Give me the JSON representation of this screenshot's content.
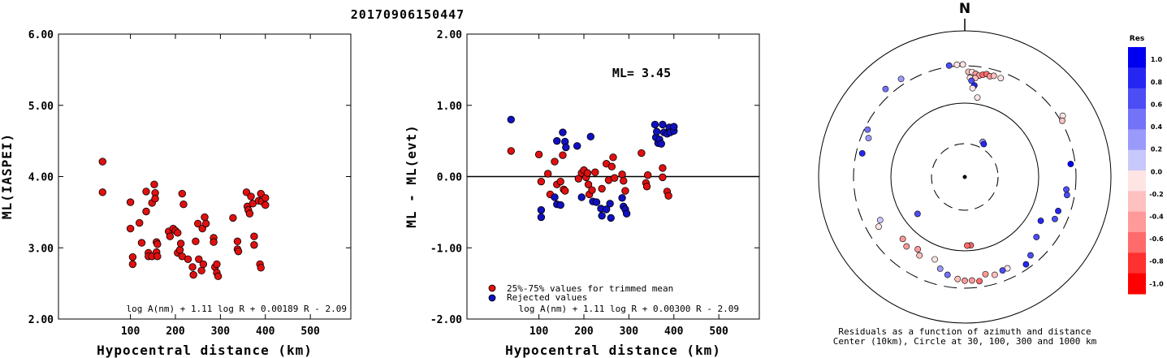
{
  "figure_title": "20170906150447",
  "chart_data": [
    {
      "type": "scatter",
      "title": "",
      "xlabel": "Hypocentral distance (km)",
      "ylabel": "ML(IASPEI)",
      "xlim": [
        -60,
        590
      ],
      "ylim": [
        2.0,
        6.0
      ],
      "xticks": [
        "100",
        "200",
        "300",
        "400",
        "500"
      ],
      "yticks": [
        "2.00",
        "3.00",
        "4.00",
        "5.00",
        "6.00"
      ],
      "formula": "log A(nm) + 1.11 log R + 0.00189 R - 2.09",
      "series": [
        {
          "color": "#e01010",
          "points": [
            [
              38,
              4.21
            ],
            [
              38,
              3.78
            ],
            [
              100,
              3.64
            ],
            [
              100,
              3.27
            ],
            [
              105,
              2.87
            ],
            [
              105,
              2.77
            ],
            [
              120,
              3.35
            ],
            [
              125,
              3.07
            ],
            [
              135,
              3.79
            ],
            [
              135,
              3.51
            ],
            [
              140,
              2.93
            ],
            [
              140,
              2.88
            ],
            [
              148,
              3.63
            ],
            [
              148,
              2.88
            ],
            [
              153,
              3.89
            ],
            [
              155,
              3.77
            ],
            [
              155,
              3.69
            ],
            [
              158,
              3.08
            ],
            [
              158,
              2.94
            ],
            [
              160,
              3.05
            ],
            [
              160,
              2.88
            ],
            [
              185,
              3.23
            ],
            [
              188,
              3.16
            ],
            [
              195,
              3.27
            ],
            [
              200,
              3.24
            ],
            [
              205,
              3.21
            ],
            [
              205,
              2.93
            ],
            [
              210,
              2.97
            ],
            [
              212,
              3.06
            ],
            [
              215,
              3.76
            ],
            [
              215,
              2.88
            ],
            [
              218,
              3.61
            ],
            [
              228,
              2.84
            ],
            [
              238,
              2.73
            ],
            [
              240,
              2.62
            ],
            [
              245,
              3.09
            ],
            [
              250,
              3.34
            ],
            [
              252,
              2.84
            ],
            [
              258,
              2.68
            ],
            [
              260,
              3.27
            ],
            [
              262,
              2.77
            ],
            [
              265,
              3.43
            ],
            [
              268,
              3.34
            ],
            [
              285,
              3.14
            ],
            [
              285,
              3.08
            ],
            [
              288,
              2.73
            ],
            [
              292,
              2.77
            ],
            [
              292,
              2.65
            ],
            [
              295,
              2.6
            ],
            [
              328,
              3.42
            ],
            [
              338,
              3.09
            ],
            [
              338,
              2.98
            ],
            [
              340,
              2.95
            ],
            [
              358,
              3.78
            ],
            [
              360,
              3.58
            ],
            [
              362,
              3.53
            ],
            [
              365,
              3.48
            ],
            [
              368,
              3.72
            ],
            [
              372,
              3.62
            ],
            [
              375,
              3.16
            ],
            [
              375,
              3.04
            ],
            [
              385,
              3.66
            ],
            [
              388,
              2.77
            ],
            [
              390,
              2.72
            ],
            [
              390,
              3.76
            ],
            [
              392,
              3.65
            ],
            [
              400,
              3.7
            ],
            [
              400,
              3.6
            ]
          ]
        }
      ]
    },
    {
      "type": "scatter",
      "title": "",
      "xlabel": "Hypocentral distance (km)",
      "ylabel": "ML - ML(evt)",
      "xlim": [
        -60,
        590
      ],
      "ylim": [
        -2.0,
        2.0
      ],
      "xticks": [
        "100",
        "200",
        "300",
        "400",
        "500"
      ],
      "yticks": [
        "-2.00",
        "-1.00",
        "0.00",
        "1.00",
        "2.00"
      ],
      "formula": "log A(nm) + 1.11 log R + 0.00300 R - 2.09",
      "ml_label": "ML= 3.45",
      "legend": [
        {
          "label": "25%-75% values for trimmed mean",
          "color": "#e01010"
        },
        {
          "label": "Rejected values",
          "color": "#1010c0"
        }
      ],
      "series": [
        {
          "name": "25%-75% values for trimmed mean",
          "color": "#e01010",
          "points": [
            [
              38,
              0.36
            ],
            [
              100,
              0.31
            ],
            [
              105,
              -0.07
            ],
            [
              120,
              0.04
            ],
            [
              125,
              -0.25
            ],
            [
              135,
              0.21
            ],
            [
              140,
              -0.11
            ],
            [
              148,
              -0.07
            ],
            [
              153,
              0.3
            ],
            [
              155,
              -0.18
            ],
            [
              158,
              -0.2
            ],
            [
              188,
              -0.03
            ],
            [
              195,
              0.05
            ],
            [
              200,
              0.09
            ],
            [
              205,
              -0.01
            ],
            [
              208,
              0.05
            ],
            [
              210,
              -0.11
            ],
            [
              212,
              -0.25
            ],
            [
              218,
              -0.19
            ],
            [
              225,
              0.06
            ],
            [
              240,
              -0.17
            ],
            [
              250,
              0.18
            ],
            [
              255,
              -0.05
            ],
            [
              262,
              0.14
            ],
            [
              265,
              0.27
            ],
            [
              268,
              -0.02
            ],
            [
              285,
              0.03
            ],
            [
              288,
              -0.06
            ],
            [
              292,
              -0.2
            ],
            [
              328,
              0.33
            ],
            [
              338,
              -0.09
            ],
            [
              340,
              -0.14
            ],
            [
              342,
              0.02
            ],
            [
              375,
              0.12
            ],
            [
              375,
              -0.01
            ],
            [
              385,
              -0.21
            ],
            [
              388,
              -0.27
            ]
          ]
        },
        {
          "name": "Rejected values",
          "color": "#1010c0",
          "points": [
            [
              38,
              0.8
            ],
            [
              105,
              -0.47
            ],
            [
              105,
              -0.57
            ],
            [
              135,
              -0.29
            ],
            [
              140,
              0.5
            ],
            [
              140,
              -0.39
            ],
            [
              148,
              -0.4
            ],
            [
              153,
              0.62
            ],
            [
              158,
              0.49
            ],
            [
              160,
              0.41
            ],
            [
              185,
              0.43
            ],
            [
              195,
              -0.29
            ],
            [
              215,
              0.56
            ],
            [
              220,
              -0.35
            ],
            [
              228,
              -0.36
            ],
            [
              238,
              -0.45
            ],
            [
              240,
              -0.55
            ],
            [
              250,
              -0.46
            ],
            [
              258,
              -0.38
            ],
            [
              260,
              -0.58
            ],
            [
              285,
              -0.3
            ],
            [
              288,
              -0.42
            ],
            [
              292,
              -0.46
            ],
            [
              295,
              -0.52
            ],
            [
              358,
              0.73
            ],
            [
              360,
              0.55
            ],
            [
              362,
              0.63
            ],
            [
              365,
              0.47
            ],
            [
              368,
              0.52
            ],
            [
              372,
              0.46
            ],
            [
              375,
              0.73
            ],
            [
              378,
              0.62
            ],
            [
              385,
              0.6
            ],
            [
              390,
              0.69
            ],
            [
              392,
              0.62
            ],
            [
              400,
              0.64
            ],
            [
              400,
              0.7
            ]
          ]
        }
      ]
    },
    {
      "type": "scatter",
      "title": "N",
      "caption_line1": "Residuals as a function of azimuth and distance",
      "caption_line2": "Center (10km), Circle at 30, 100, 300 and 1000 km",
      "colorbar_title": "Res",
      "colorbar_ticks": [
        "1.0",
        "0.8",
        "0.6",
        "0.4",
        "0.2",
        "0.0",
        "-0.2",
        "-0.4",
        "-0.6",
        "-0.8",
        "-1.0"
      ],
      "colorbar_colors": [
        "#0000f0",
        "#2626f4",
        "#4d4df6",
        "#7373f8",
        "#9a9afa",
        "#c8c8fd",
        "#ffe4e4",
        "#ffc0c0",
        "#ff9a9a",
        "#ff6b6b",
        "#ff3030",
        "#ff0000"
      ],
      "rings_km": [
        10,
        30,
        100,
        300,
        1000
      ],
      "points_az_r_res": [
        [
          352,
          0.77,
          0.6
        ],
        [
          356,
          0.77,
          0.0
        ],
        [
          359,
          0.77,
          0.0
        ],
        [
          2,
          0.72,
          -0.3
        ],
        [
          4,
          0.72,
          -0.1
        ],
        [
          6,
          0.71,
          -0.5
        ],
        [
          8,
          0.7,
          -0.4
        ],
        [
          10,
          0.71,
          -0.6
        ],
        [
          12,
          0.72,
          -0.7
        ],
        [
          14,
          0.71,
          -0.5
        ],
        [
          16,
          0.72,
          -0.3
        ],
        [
          20,
          0.72,
          -0.1
        ],
        [
          3,
          0.68,
          -0.1
        ],
        [
          6,
          0.68,
          -0.2
        ],
        [
          4,
          0.66,
          0.6
        ],
        [
          6,
          0.63,
          0.8
        ],
        [
          5,
          0.61,
          -0.1
        ],
        [
          9,
          0.55,
          -0.1
        ],
        [
          27,
          0.27,
          0.3
        ],
        [
          30,
          0.26,
          0.9
        ],
        [
          58,
          0.79,
          -0.1
        ],
        [
          60,
          0.77,
          -0.2
        ],
        [
          83,
          0.73,
          1.0
        ],
        [
          97,
          0.7,
          0.6
        ],
        [
          100,
          0.71,
          0.7
        ],
        [
          110,
          0.68,
          0.8
        ],
        [
          115,
          0.68,
          0.7
        ],
        [
          120,
          0.6,
          0.8
        ],
        [
          130,
          0.64,
          0.7
        ],
        [
          140,
          0.7,
          0.7
        ],
        [
          145,
          0.73,
          0.9
        ],
        [
          155,
          0.69,
          0.0
        ],
        [
          158,
          0.69,
          0.6
        ],
        [
          163,
          0.7,
          -0.3
        ],
        [
          168,
          0.68,
          -0.5
        ],
        [
          172,
          0.72,
          -0.6
        ],
        [
          176,
          0.71,
          -0.4
        ],
        [
          180,
          0.71,
          -0.4
        ],
        [
          184,
          0.7,
          -0.3
        ],
        [
          175,
          0.47,
          -0.7
        ],
        [
          178,
          0.47,
          -0.7
        ],
        [
          190,
          0.68,
          0.4
        ],
        [
          195,
          0.65,
          0.3
        ],
        [
          200,
          0.6,
          -0.1
        ],
        [
          210,
          0.62,
          -0.3
        ],
        [
          213,
          0.59,
          -0.4
        ],
        [
          220,
          0.62,
          -0.4
        ],
        [
          225,
          0.6,
          -0.5
        ],
        [
          240,
          0.68,
          0.0
        ],
        [
          243,
          0.65,
          0.1
        ],
        [
          232,
          0.41,
          0.6
        ],
        [
          283,
          0.72,
          0.8
        ],
        [
          292,
          0.71,
          0.3
        ],
        [
          296,
          0.74,
          0.4
        ],
        [
          318,
          0.81,
          0.4
        ],
        [
          327,
          0.8,
          0.3
        ]
      ]
    }
  ]
}
